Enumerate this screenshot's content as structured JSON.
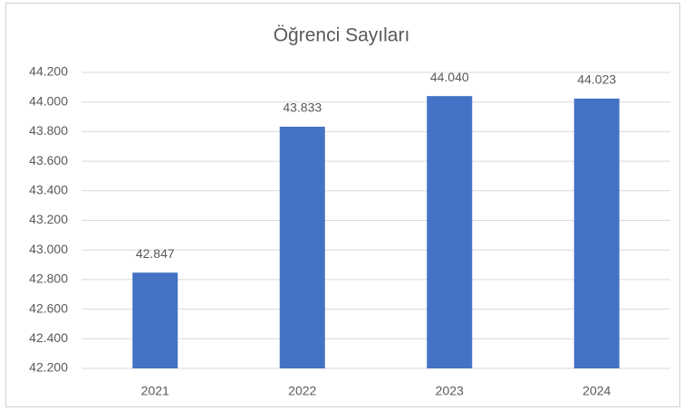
{
  "chart_data": {
    "type": "bar",
    "title": "Öğrenci Sayıları",
    "categories": [
      "2021",
      "2022",
      "2023",
      "2024"
    ],
    "values": [
      42847,
      43833,
      44040,
      44023
    ],
    "value_labels": [
      "42.847",
      "43.833",
      "44.040",
      "44.023"
    ],
    "color": "#4472c4",
    "ylim": [
      42200,
      44200
    ],
    "yticks": [
      {
        "value": 42200,
        "label": "42.200"
      },
      {
        "value": 42400,
        "label": "42.400"
      },
      {
        "value": 42600,
        "label": "42.600"
      },
      {
        "value": 42800,
        "label": "42.800"
      },
      {
        "value": 43000,
        "label": "43.000"
      },
      {
        "value": 43200,
        "label": "43.200"
      },
      {
        "value": 43400,
        "label": "43.400"
      },
      {
        "value": 43600,
        "label": "43.600"
      },
      {
        "value": 43800,
        "label": "43.800"
      },
      {
        "value": 44000,
        "label": "44.000"
      },
      {
        "value": 44200,
        "label": "44.200"
      }
    ],
    "grid": true
  }
}
